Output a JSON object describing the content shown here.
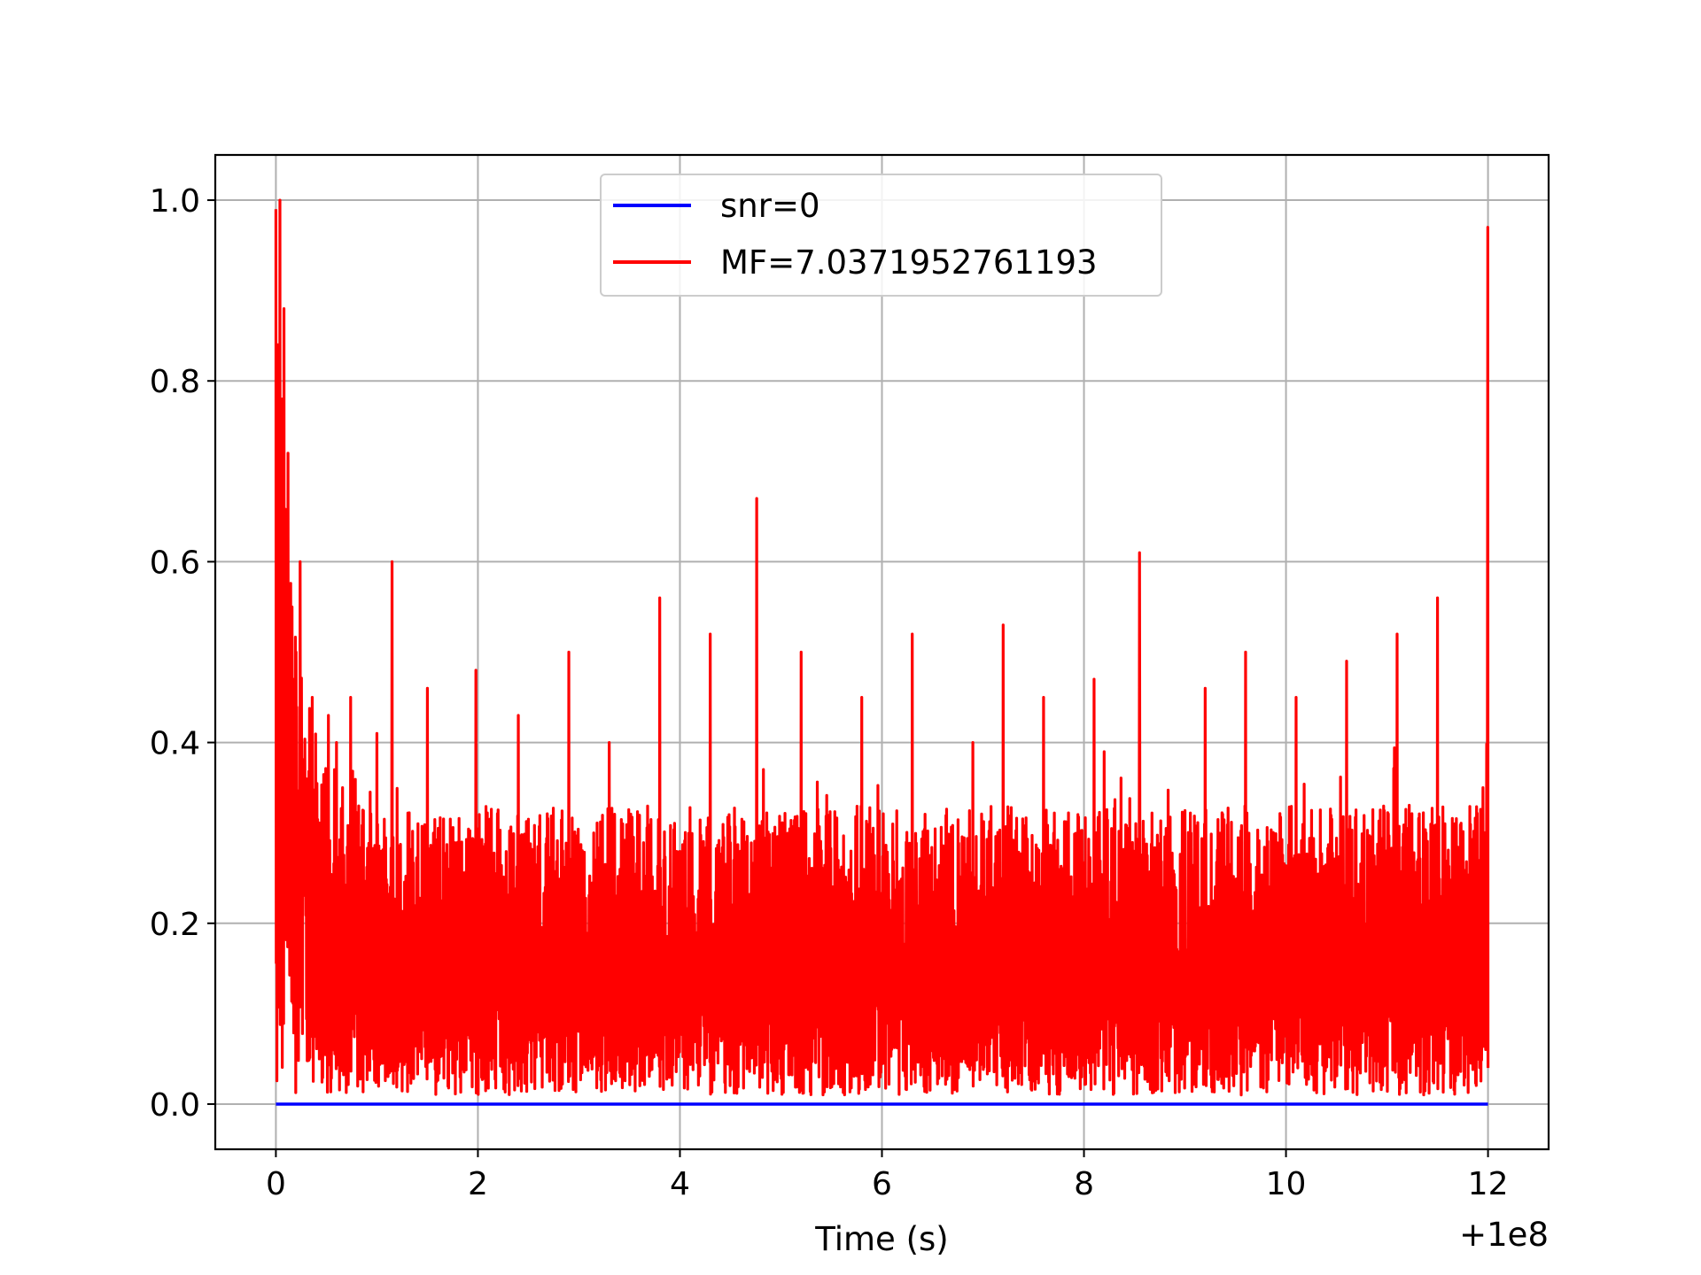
{
  "chart_data": {
    "type": "line",
    "title": "",
    "xlabel": "Time (s)",
    "ylabel": "",
    "x_offset_label": "+1e8",
    "xlim": [
      -0.6,
      12.6
    ],
    "ylim": [
      -0.05,
      1.05
    ],
    "x_ticks": [
      0,
      2,
      4,
      6,
      8,
      10,
      12
    ],
    "x_tick_labels": [
      "0",
      "2",
      "4",
      "6",
      "8",
      "10",
      "12"
    ],
    "y_ticks": [
      0.0,
      0.2,
      0.4,
      0.6,
      0.8,
      1.0
    ],
    "y_tick_labels": [
      "0.0",
      "0.2",
      "0.4",
      "0.6",
      "0.8",
      "1.0"
    ],
    "grid": true,
    "legend_position": "upper center",
    "series": [
      {
        "name": "snr=0",
        "color": "#0000ff",
        "x": [
          0,
          12
        ],
        "values": [
          0,
          0
        ]
      },
      {
        "name": "MF=7.0371952761193",
        "color": "#ff0000",
        "description": "dense noisy signal sampled from 0 to 12 (×1e8 s)",
        "x": [
          0,
          0.02,
          0.04,
          0.06,
          0.08,
          0.1,
          0.12,
          0.14,
          0.16,
          0.18,
          0.2,
          0.22,
          0.24,
          0.3,
          0.36,
          0.42,
          0.52,
          0.58,
          0.6,
          0.66,
          0.74,
          0.8,
          1.0,
          1.15,
          1.5,
          1.98,
          2.4,
          2.9,
          3.3,
          3.8,
          4.3,
          4.76,
          5.2,
          5.8,
          6.3,
          6.9,
          7.2,
          7.6,
          8.1,
          8.55,
          9.2,
          9.6,
          10.1,
          10.6,
          11.1,
          11.5,
          11.95,
          12.0
        ],
        "values": [
          0.99,
          0.84,
          1.0,
          0.78,
          0.88,
          0.63,
          0.72,
          0.33,
          0.55,
          0.47,
          0.5,
          0.25,
          0.6,
          0.36,
          0.45,
          0.3,
          0.43,
          0.37,
          0.4,
          0.35,
          0.45,
          0.3,
          0.41,
          0.6,
          0.46,
          0.48,
          0.43,
          0.5,
          0.4,
          0.56,
          0.52,
          0.67,
          0.5,
          0.45,
          0.52,
          0.4,
          0.53,
          0.45,
          0.47,
          0.61,
          0.46,
          0.5,
          0.45,
          0.49,
          0.52,
          0.56,
          0.35,
          0.97
        ]
      }
    ]
  }
}
